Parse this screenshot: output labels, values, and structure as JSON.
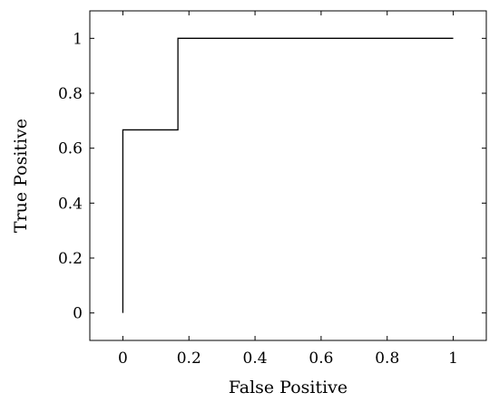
{
  "chart_data": {
    "type": "line",
    "title": "",
    "xlabel": "False Positive",
    "ylabel": "True Positive",
    "xlim": [
      -0.1,
      1.1
    ],
    "ylim": [
      -0.1,
      1.1
    ],
    "x_ticks": [
      0,
      0.2,
      0.4,
      0.6,
      0.8,
      1
    ],
    "y_ticks": [
      0,
      0.2,
      0.4,
      0.6,
      0.8,
      1
    ],
    "x_tick_labels": [
      "0",
      "0.2",
      "0.4",
      "0.6",
      "0.8",
      "1"
    ],
    "y_tick_labels": [
      "0",
      "0.2",
      "0.4",
      "0.6",
      "0.8",
      "1"
    ],
    "grid": false,
    "legend": "none",
    "series": [
      {
        "color": "#000000",
        "x": [
          0,
          0,
          0.1667,
          0.1667,
          1
        ],
        "y": [
          0,
          0.6667,
          0.6667,
          1,
          1
        ]
      }
    ]
  }
}
